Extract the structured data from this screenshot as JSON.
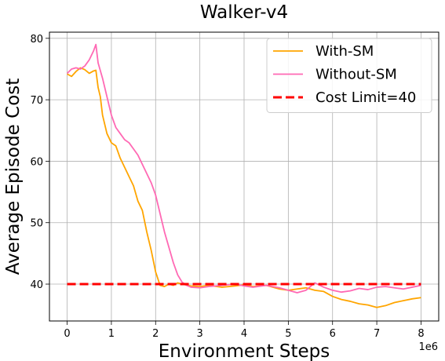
{
  "chart_data": {
    "type": "line",
    "title": "Walker-v4",
    "xlabel": "Environment Steps",
    "ylabel": "Average Episode Cost",
    "x_offset_label": "1e6",
    "xlim": [
      -0.4,
      8.4
    ],
    "ylim": [
      34,
      81
    ],
    "xticks": [
      0,
      1,
      2,
      3,
      4,
      5,
      6,
      7,
      8
    ],
    "xtick_labels": [
      "0",
      "1",
      "2",
      "3",
      "4",
      "5",
      "6",
      "7",
      "8"
    ],
    "yticks": [
      40,
      50,
      60,
      70,
      80
    ],
    "ytick_labels": [
      "40",
      "50",
      "60",
      "70",
      "80"
    ],
    "grid": true,
    "legend_position": "top-right",
    "series": [
      {
        "name": "With-SM",
        "color": "#ffa500",
        "style": "solid",
        "x": [
          0,
          0.1,
          0.2,
          0.3,
          0.4,
          0.5,
          0.6,
          0.65,
          0.7,
          0.75,
          0.8,
          0.9,
          1.0,
          1.1,
          1.2,
          1.3,
          1.4,
          1.5,
          1.6,
          1.7,
          1.8,
          1.9,
          2.0,
          2.1,
          2.2,
          2.3,
          2.4,
          2.5,
          2.6,
          2.8,
          3.0,
          3.2,
          3.5,
          3.8,
          4.0,
          4.2,
          4.5,
          4.8,
          5.0,
          5.2,
          5.4,
          5.6,
          5.8,
          6.0,
          6.2,
          6.4,
          6.6,
          6.8,
          7.0,
          7.2,
          7.4,
          7.6,
          7.8,
          8.0
        ],
        "y": [
          74.2,
          73.8,
          74.6,
          75.2,
          74.9,
          74.3,
          74.7,
          74.8,
          72.0,
          70.5,
          67.5,
          64.5,
          63.0,
          62.5,
          60.5,
          59.0,
          57.5,
          56.0,
          53.5,
          52.0,
          48.5,
          45.5,
          42.0,
          39.8,
          39.6,
          40.0,
          39.8,
          40.2,
          40.0,
          39.7,
          39.6,
          39.8,
          39.5,
          39.7,
          39.9,
          39.6,
          39.8,
          39.2,
          39.0,
          39.2,
          39.4,
          39.0,
          38.8,
          38.0,
          37.5,
          37.2,
          36.8,
          36.6,
          36.2,
          36.5,
          37.0,
          37.3,
          37.6,
          37.8
        ]
      },
      {
        "name": "Without-SM",
        "color": "#ff69b4",
        "style": "solid",
        "x": [
          0,
          0.1,
          0.2,
          0.3,
          0.4,
          0.5,
          0.6,
          0.65,
          0.7,
          0.8,
          0.9,
          1.0,
          1.1,
          1.2,
          1.3,
          1.4,
          1.5,
          1.6,
          1.7,
          1.8,
          1.9,
          2.0,
          2.1,
          2.2,
          2.3,
          2.4,
          2.5,
          2.6,
          2.7,
          2.8,
          3.0,
          3.2,
          3.5,
          3.8,
          4.0,
          4.2,
          4.5,
          4.8,
          5.0,
          5.2,
          5.4,
          5.6,
          5.8,
          6.0,
          6.2,
          6.4,
          6.6,
          6.8,
          7.0,
          7.2,
          7.4,
          7.6,
          7.8,
          8.0
        ],
        "y": [
          74.3,
          75.0,
          75.2,
          75.0,
          75.5,
          76.5,
          78.0,
          79.0,
          76.0,
          73.5,
          70.5,
          67.5,
          65.5,
          64.5,
          63.5,
          63.0,
          62.0,
          61.0,
          59.5,
          58.0,
          56.5,
          54.5,
          51.5,
          48.5,
          46.0,
          43.5,
          41.5,
          40.3,
          39.8,
          39.5,
          39.4,
          39.6,
          39.8,
          40.0,
          39.7,
          39.5,
          39.8,
          39.4,
          39.0,
          38.6,
          39.0,
          40.2,
          39.5,
          39.0,
          38.7,
          38.9,
          39.3,
          39.1,
          39.5,
          39.6,
          39.4,
          39.2,
          39.5,
          39.8
        ]
      },
      {
        "name": "Cost Limit=40",
        "color": "#ff0000",
        "style": "dashed",
        "x": [
          0,
          8
        ],
        "y": [
          40,
          40
        ]
      }
    ]
  }
}
